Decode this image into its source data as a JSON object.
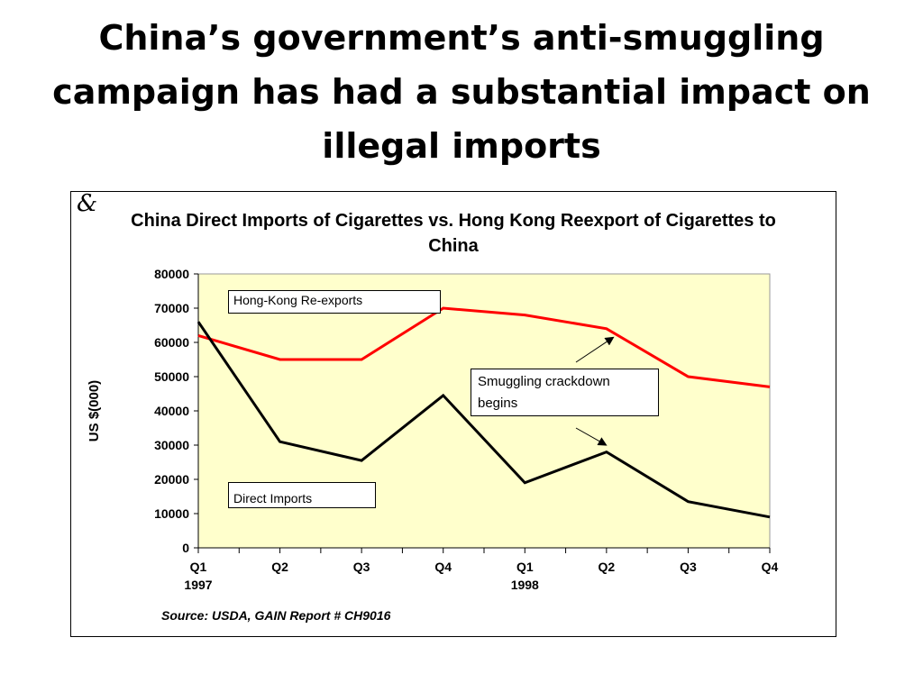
{
  "slide": {
    "title": "China’s government’s anti-smuggling campaign has had a substantial impact on illegal imports"
  },
  "chart": {
    "corner_mark": "&",
    "source": "Source: USDA, GAIN Report # CH9016",
    "label_hk": "Hong-Kong Re-exports",
    "label_direct": "Direct  Imports",
    "annotation": "Smuggling crackdown begins",
    "year_labels": [
      "1997",
      "1998"
    ]
  },
  "colors": {
    "plot_bg": "#ffffcc",
    "hong_kong": "#ff0000",
    "direct": "#000000"
  },
  "chart_data": {
    "type": "line",
    "title": "China Direct Imports of Cigarettes vs. Hong Kong Reexport of Cigarettes to China",
    "ylabel": "US $(000)",
    "xlabel": "",
    "categories": [
      "Q1",
      "Q2",
      "Q3",
      "Q4",
      "Q1",
      "Q2",
      "Q3",
      "Q4"
    ],
    "ylim": [
      0,
      80000
    ],
    "yticks": [
      0,
      10000,
      20000,
      30000,
      40000,
      50000,
      60000,
      70000,
      80000
    ],
    "grid": false,
    "series": [
      {
        "name": "Hong-Kong Re-exports",
        "values": [
          62000,
          55000,
          55000,
          70000,
          68000,
          64000,
          50000,
          47000
        ]
      },
      {
        "name": "Direct  Imports",
        "values": [
          66000,
          31000,
          25500,
          44500,
          19000,
          28000,
          13500,
          9000
        ]
      }
    ]
  }
}
